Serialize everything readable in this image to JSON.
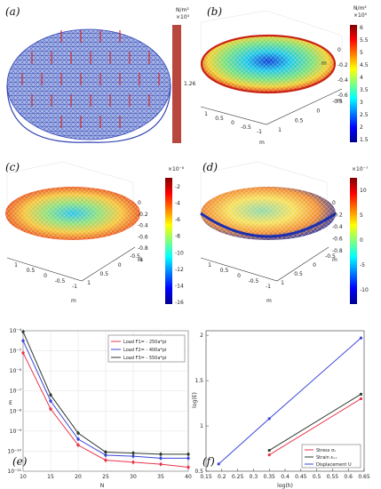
{
  "panel_labels": [
    "(a)",
    "(b)",
    "(c)",
    "(d)",
    "(e)",
    "(f)"
  ],
  "panel_a": {
    "colorbar_unit": "N/m²",
    "colorbar_exp": "×10⁵",
    "colorbar_value": "1.26",
    "bar_color": "#b8473f"
  },
  "panel_b": {
    "colorbar_unit": "N/m²",
    "colorbar_exp": "×10⁵",
    "colorbar_ticks": [
      "6",
      "5.5",
      "5",
      "4.5",
      "4",
      "3.5",
      "3",
      "2.5",
      "2",
      "1.5"
    ],
    "z_ticks": [
      "0",
      "-0.2",
      "-0.4",
      "-0.6"
    ],
    "z_unit": "m",
    "y_ticks": [
      "1",
      "0.5",
      "0",
      "-0.5",
      "-1"
    ],
    "y_unit": "m",
    "x_ticks": [
      "1",
      "0.5",
      "0",
      "-0.5"
    ],
    "x_unit": "m"
  },
  "panel_c": {
    "colorbar_exp": "×10⁻⁶",
    "colorbar_ticks": [
      "-2",
      "-4",
      "-6",
      "-8",
      "-10",
      "-12",
      "-14",
      "-16"
    ],
    "z_ticks": [
      "0",
      "-0.2",
      "-0.4",
      "-0.6",
      "-0.8",
      "-1"
    ],
    "y_ticks": [
      "1",
      "0.5",
      "0",
      "-0.5",
      "-1"
    ],
    "x_ticks": [
      "1",
      "0.5",
      "0",
      "-0.5"
    ],
    "x_unit": "m",
    "y_unit": "m"
  },
  "panel_d": {
    "colorbar_exp": "×10⁻⁷",
    "colorbar_ticks": [
      "10",
      "5",
      "0",
      "-5",
      "-10"
    ],
    "z_ticks": [
      "0",
      "-0.2",
      "-0.4",
      "-0.6",
      "-0.8"
    ],
    "y_ticks": [
      "1",
      "0.5",
      "0",
      "-0.5",
      "-1"
    ],
    "x_ticks": [
      "1",
      "0.5",
      "0",
      "-0.5"
    ],
    "x_unit": "m",
    "y_unit": "m"
  },
  "chart_data": [
    {
      "panel": "(e)",
      "type": "line",
      "xlabel": "N",
      "ylabel": "E",
      "yscale": "log",
      "x_ticks": [
        "10",
        "15",
        "20",
        "25",
        "30",
        "35",
        "40"
      ],
      "y_ticks": [
        "10⁻⁴",
        "10⁻⁵",
        "10⁻⁶",
        "10⁻⁷",
        "10⁻⁸",
        "10⁻⁹",
        "10⁻¹⁰",
        "10⁻¹¹"
      ],
      "xlim": [
        10,
        40
      ],
      "ylim_exp": [
        -11,
        -4
      ],
      "grid": true,
      "legend": "top-right",
      "x": [
        10,
        15,
        20,
        25,
        30,
        35,
        40
      ],
      "series": [
        {
          "name": "Load F1= - 250a*pi",
          "color": "#e8354a",
          "log10_values": [
            -5.1,
            -7.9,
            -9.7,
            -10.45,
            -10.55,
            -10.65,
            -10.8
          ]
        },
        {
          "name": "Load F2= - 400a*pi",
          "color": "#3a46d8",
          "log10_values": [
            -4.5,
            -7.5,
            -9.4,
            -10.2,
            -10.25,
            -10.35,
            -10.35
          ]
        },
        {
          "name": "Load F3= - 550a*pi",
          "color": "#2e3b2e",
          "log10_values": [
            -4.05,
            -7.2,
            -9.1,
            -10.05,
            -10.1,
            -10.15,
            -10.15
          ]
        }
      ]
    },
    {
      "panel": "(f)",
      "type": "line",
      "xlabel": "log(h)",
      "ylabel": "log(E)",
      "x_ticks": [
        "0.15",
        "0.2",
        "0.25",
        "0.3",
        "0.35",
        "0.4",
        "0.45",
        "0.5",
        "0.55",
        "0.6",
        "0.65"
      ],
      "y_ticks": [
        "0.5",
        "1",
        "1.5",
        "2"
      ],
      "xlim": [
        0.15,
        0.65
      ],
      "ylim": [
        0.5,
        2.05
      ],
      "grid": false,
      "legend": "bottom-right",
      "series": [
        {
          "name": "Stress σₓ",
          "color": "#e8354a",
          "x": [
            0.35,
            0.64
          ],
          "y": [
            0.68,
            1.3
          ]
        },
        {
          "name": "Strain εₓₓ",
          "color": "#2e3b2e",
          "x": [
            0.35,
            0.64
          ],
          "y": [
            0.73,
            1.35
          ]
        },
        {
          "name": "Displacement U",
          "color": "#3a46d8",
          "x": [
            0.19,
            0.35,
            0.64
          ],
          "y": [
            0.58,
            1.08,
            1.97
          ]
        }
      ]
    }
  ]
}
